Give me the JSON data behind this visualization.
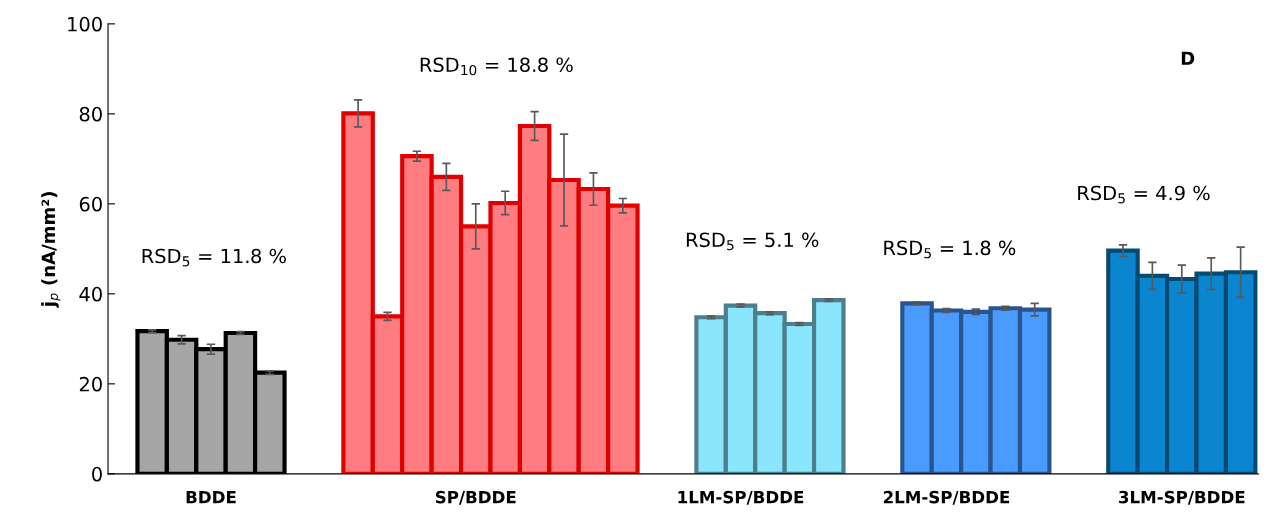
{
  "chart_data": {
    "type": "bar",
    "ylabel": "j$_{p}$ (nA/mm²)",
    "categories": [
      null,
      null,
      "BDDE",
      null,
      null,
      null,
      null,
      null,
      null,
      null,
      null,
      "SP/BDDE",
      null,
      null,
      null,
      null,
      null,
      null,
      null,
      null,
      "1LM-SP/BDDE",
      null,
      null,
      null,
      null,
      null,
      null,
      "2LM-SP/BDDE",
      null,
      null,
      null,
      null,
      null,
      null,
      null,
      "3LM-SP/BDDE",
      null,
      null
    ],
    "values": [
      31.7,
      29.8,
      27.7,
      31.3,
      22.5,
      null,
      null,
      80.1,
      35.0,
      70.6,
      66.0,
      55.0,
      60.2,
      77.3,
      65.3,
      63.3,
      59.6,
      null,
      null,
      34.8,
      37.4,
      35.7,
      33.3,
      38.6,
      null,
      null,
      37.9,
      36.3,
      36.0,
      36.8,
      36.5,
      null,
      null,
      49.6,
      44.0,
      43.3,
      44.5,
      44.8
    ],
    "errors": [
      0.3,
      0.9,
      1.1,
      0.3,
      0.4,
      null,
      null,
      3.0,
      0.9,
      1.1,
      3.0,
      5.0,
      2.6,
      3.2,
      10.2,
      3.6,
      1.6,
      null,
      null,
      0.3,
      0.3,
      0.3,
      0.3,
      0.3,
      null,
      null,
      0.3,
      0.4,
      0.6,
      0.4,
      1.4,
      null,
      null,
      1.3,
      3.0,
      3.1,
      3.5,
      5.6
    ],
    "colors": [
      "#a6a6a6",
      "#a6a6a6",
      "#a6a6a6",
      "#a6a6a6",
      "#a6a6a6",
      null,
      null,
      "#ff7c80",
      "#ff7c80",
      "#ff7c80",
      "#ff7c80",
      "#ff7c80",
      "#ff7c80",
      "#ff7c80",
      "#ff7c80",
      "#ff7c80",
      "#ff7c80",
      null,
      null,
      "#8ae6fd",
      "#8ae6fd",
      "#8ae6fd",
      "#8ae6fd",
      "#8ae6fd",
      null,
      null,
      "#4a9bff",
      "#4a9bff",
      "#4a9bff",
      "#4a9bff",
      "#4a9bff",
      null,
      null,
      "#0a86d0",
      "#0a86d0",
      "#0a86d0",
      "#0a86d0",
      "#0a86d0"
    ],
    "ylim": [
      0,
      100
    ],
    "yticks": [
      0,
      20,
      40,
      60,
      80,
      100
    ],
    "grid": false,
    "legend": false,
    "annotations": [
      "RSD$_{5}$ = 11.8 %",
      "RSD$_{10}$ = 18.8 %",
      "RSD$_{5}$ = 5.1 %",
      "RSD$_{5}$ = 1.8 %",
      "RSD$_{5}$ = 4.9 %",
      "D"
    ]
  }
}
